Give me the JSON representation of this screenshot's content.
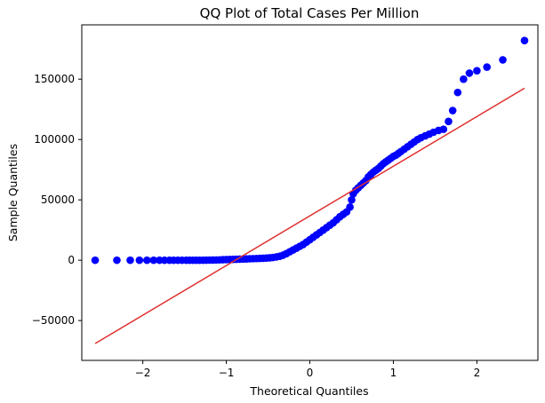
{
  "chart_data": {
    "type": "scatter",
    "title": "QQ Plot of Total Cases Per Million",
    "xlabel": "Theoretical Quantiles",
    "ylabel": "Sample Quantiles",
    "xlim": [
      -2.73,
      2.73
    ],
    "ylim": [
      -83000,
      195000
    ],
    "x_ticks": [
      -2,
      -1,
      0,
      1,
      2
    ],
    "x_tick_labels": [
      "−2",
      "−1",
      "0",
      "1",
      "2"
    ],
    "y_ticks": [
      -50000,
      0,
      50000,
      100000,
      150000
    ],
    "y_tick_labels": [
      "−50000",
      "0",
      "50000",
      "100000",
      "150000"
    ],
    "grid": false,
    "colors": {
      "points": "#0000ff",
      "line": "#e03131"
    },
    "series": [
      {
        "type": "scatter",
        "points": [
          [
            -2.57,
            0
          ],
          [
            -2.31,
            0
          ],
          [
            -2.15,
            0
          ],
          [
            -2.04,
            0
          ],
          [
            -1.95,
            0
          ],
          [
            -1.87,
            0
          ],
          [
            -1.8,
            0
          ],
          [
            -1.74,
            0
          ],
          [
            -1.68,
            0
          ],
          [
            -1.63,
            0
          ],
          [
            -1.58,
            0
          ],
          [
            -1.53,
            0
          ],
          [
            -1.48,
            0
          ],
          [
            -1.44,
            0
          ],
          [
            -1.4,
            0
          ],
          [
            -1.36,
            0
          ],
          [
            -1.32,
            0
          ],
          [
            -1.28,
            0
          ],
          [
            -1.24,
            50
          ],
          [
            -1.2,
            100
          ],
          [
            -1.16,
            150
          ],
          [
            -1.12,
            200
          ],
          [
            -1.08,
            300
          ],
          [
            -1.04,
            400
          ],
          [
            -1.0,
            500
          ],
          [
            -0.96,
            600
          ],
          [
            -0.92,
            700
          ],
          [
            -0.88,
            800
          ],
          [
            -0.84,
            900
          ],
          [
            -0.8,
            1000
          ],
          [
            -0.76,
            1100
          ],
          [
            -0.72,
            1200
          ],
          [
            -0.68,
            1300
          ],
          [
            -0.64,
            1400
          ],
          [
            -0.6,
            1500
          ],
          [
            -0.56,
            1600
          ],
          [
            -0.52,
            1800
          ],
          [
            -0.48,
            2000
          ],
          [
            -0.44,
            2300
          ],
          [
            -0.4,
            2700
          ],
          [
            -0.36,
            3300
          ],
          [
            -0.32,
            4200
          ],
          [
            -0.28,
            5500
          ],
          [
            -0.24,
            7000
          ],
          [
            -0.2,
            8500
          ],
          [
            -0.16,
            10000
          ],
          [
            -0.12,
            11500
          ],
          [
            -0.08,
            13000
          ],
          [
            -0.04,
            15000
          ],
          [
            0.0,
            17000
          ],
          [
            0.04,
            19000
          ],
          [
            0.08,
            21000
          ],
          [
            0.12,
            23000
          ],
          [
            0.16,
            25000
          ],
          [
            0.2,
            27000
          ],
          [
            0.24,
            29000
          ],
          [
            0.28,
            31000
          ],
          [
            0.32,
            33500
          ],
          [
            0.36,
            36000
          ],
          [
            0.4,
            38000
          ],
          [
            0.44,
            40000
          ],
          [
            0.48,
            44000
          ],
          [
            0.5,
            50000
          ],
          [
            0.52,
            55000
          ],
          [
            0.55,
            58000
          ],
          [
            0.58,
            60000
          ],
          [
            0.61,
            62000
          ],
          [
            0.64,
            64000
          ],
          [
            0.67,
            66000
          ],
          [
            0.7,
            69000
          ],
          [
            0.73,
            71000
          ],
          [
            0.76,
            73000
          ],
          [
            0.79,
            74500
          ],
          [
            0.82,
            76000
          ],
          [
            0.85,
            78000
          ],
          [
            0.88,
            80000
          ],
          [
            0.91,
            81500
          ],
          [
            0.94,
            83000
          ],
          [
            0.97,
            84500
          ],
          [
            1.0,
            86000
          ],
          [
            1.03,
            87000
          ],
          [
            1.06,
            88500
          ],
          [
            1.09,
            90000
          ],
          [
            1.13,
            92000
          ],
          [
            1.17,
            94000
          ],
          [
            1.21,
            96000
          ],
          [
            1.25,
            98000
          ],
          [
            1.29,
            100000
          ],
          [
            1.33,
            101500
          ],
          [
            1.38,
            103000
          ],
          [
            1.43,
            104500
          ],
          [
            1.48,
            106000
          ],
          [
            1.54,
            107500
          ],
          [
            1.6,
            108500
          ],
          [
            1.66,
            115000
          ],
          [
            1.71,
            124000
          ],
          [
            1.77,
            139000
          ],
          [
            1.84,
            150000
          ],
          [
            1.91,
            155000
          ],
          [
            2.0,
            157000
          ],
          [
            2.12,
            160000
          ],
          [
            2.31,
            166000
          ],
          [
            2.57,
            182000
          ]
        ]
      },
      {
        "type": "line",
        "points": [
          [
            -2.57,
            -69000
          ],
          [
            2.57,
            142500
          ]
        ]
      }
    ]
  }
}
